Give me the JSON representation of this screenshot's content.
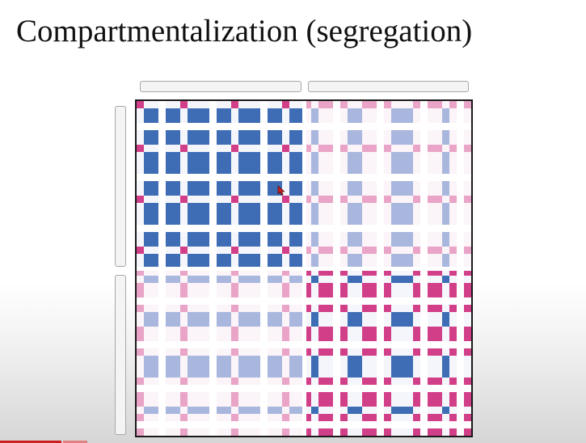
{
  "slide": {
    "title": "Compartmentalization (segregation)"
  },
  "colors": {
    "compartment_a_strong": "#3f6db5",
    "compartment_a_faded": "#a9b7de",
    "compartment_b_strong": "#d23f89",
    "compartment_b_faded": "#e9a4c7",
    "frame": "#1a1a1a",
    "bracket_fill": "#f4f4f4",
    "bracket_border": "#a7a7a7",
    "progress_red": "#cc2020"
  },
  "icons": {
    "cursor": "red-arrow-cursor-icon"
  }
}
